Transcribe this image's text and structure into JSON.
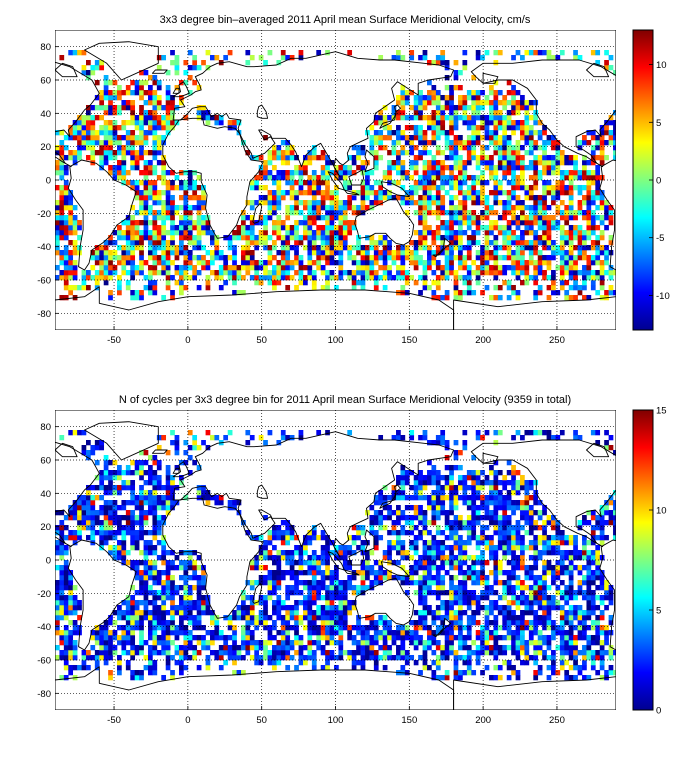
{
  "colors": {
    "background": "#ffffff",
    "axes": "#000000",
    "grid": "#000000",
    "coastline": "#000000",
    "colormap": "jet"
  },
  "panels": [
    {
      "title": "3x3 degree bin–averaged 2011 April mean Surface Meridional Velocity, cm/s",
      "chart_data": {
        "type": "heatmap",
        "projection": "equirectangular",
        "bin_size_deg": 3,
        "xlim": [
          -90,
          290
        ],
        "ylim": [
          -90,
          90
        ],
        "x_ticks": [
          -50,
          0,
          50,
          100,
          150,
          200,
          250
        ],
        "y_ticks": [
          -80,
          -60,
          -40,
          -20,
          0,
          20,
          40,
          60,
          80
        ],
        "grid": true,
        "colorbar": {
          "range": [
            -13,
            13
          ],
          "ticks": [
            -10,
            -5,
            0,
            5,
            10
          ]
        },
        "value_kind": "signed"
      }
    },
    {
      "title": "N of cycles per 3x3 degree bin for 2011 April mean Surface Meridional Velocity (9359 in total)",
      "chart_data": {
        "type": "heatmap",
        "projection": "equirectangular",
        "bin_size_deg": 3,
        "xlim": [
          -90,
          290
        ],
        "ylim": [
          -90,
          90
        ],
        "x_ticks": [
          -50,
          0,
          50,
          100,
          150,
          200,
          250
        ],
        "y_ticks": [
          -80,
          -60,
          -40,
          -20,
          0,
          20,
          40,
          60,
          80
        ],
        "grid": true,
        "colorbar": {
          "range": [
            0,
            15
          ],
          "ticks": [
            0,
            5,
            10,
            15
          ]
        },
        "value_kind": "count"
      }
    }
  ]
}
